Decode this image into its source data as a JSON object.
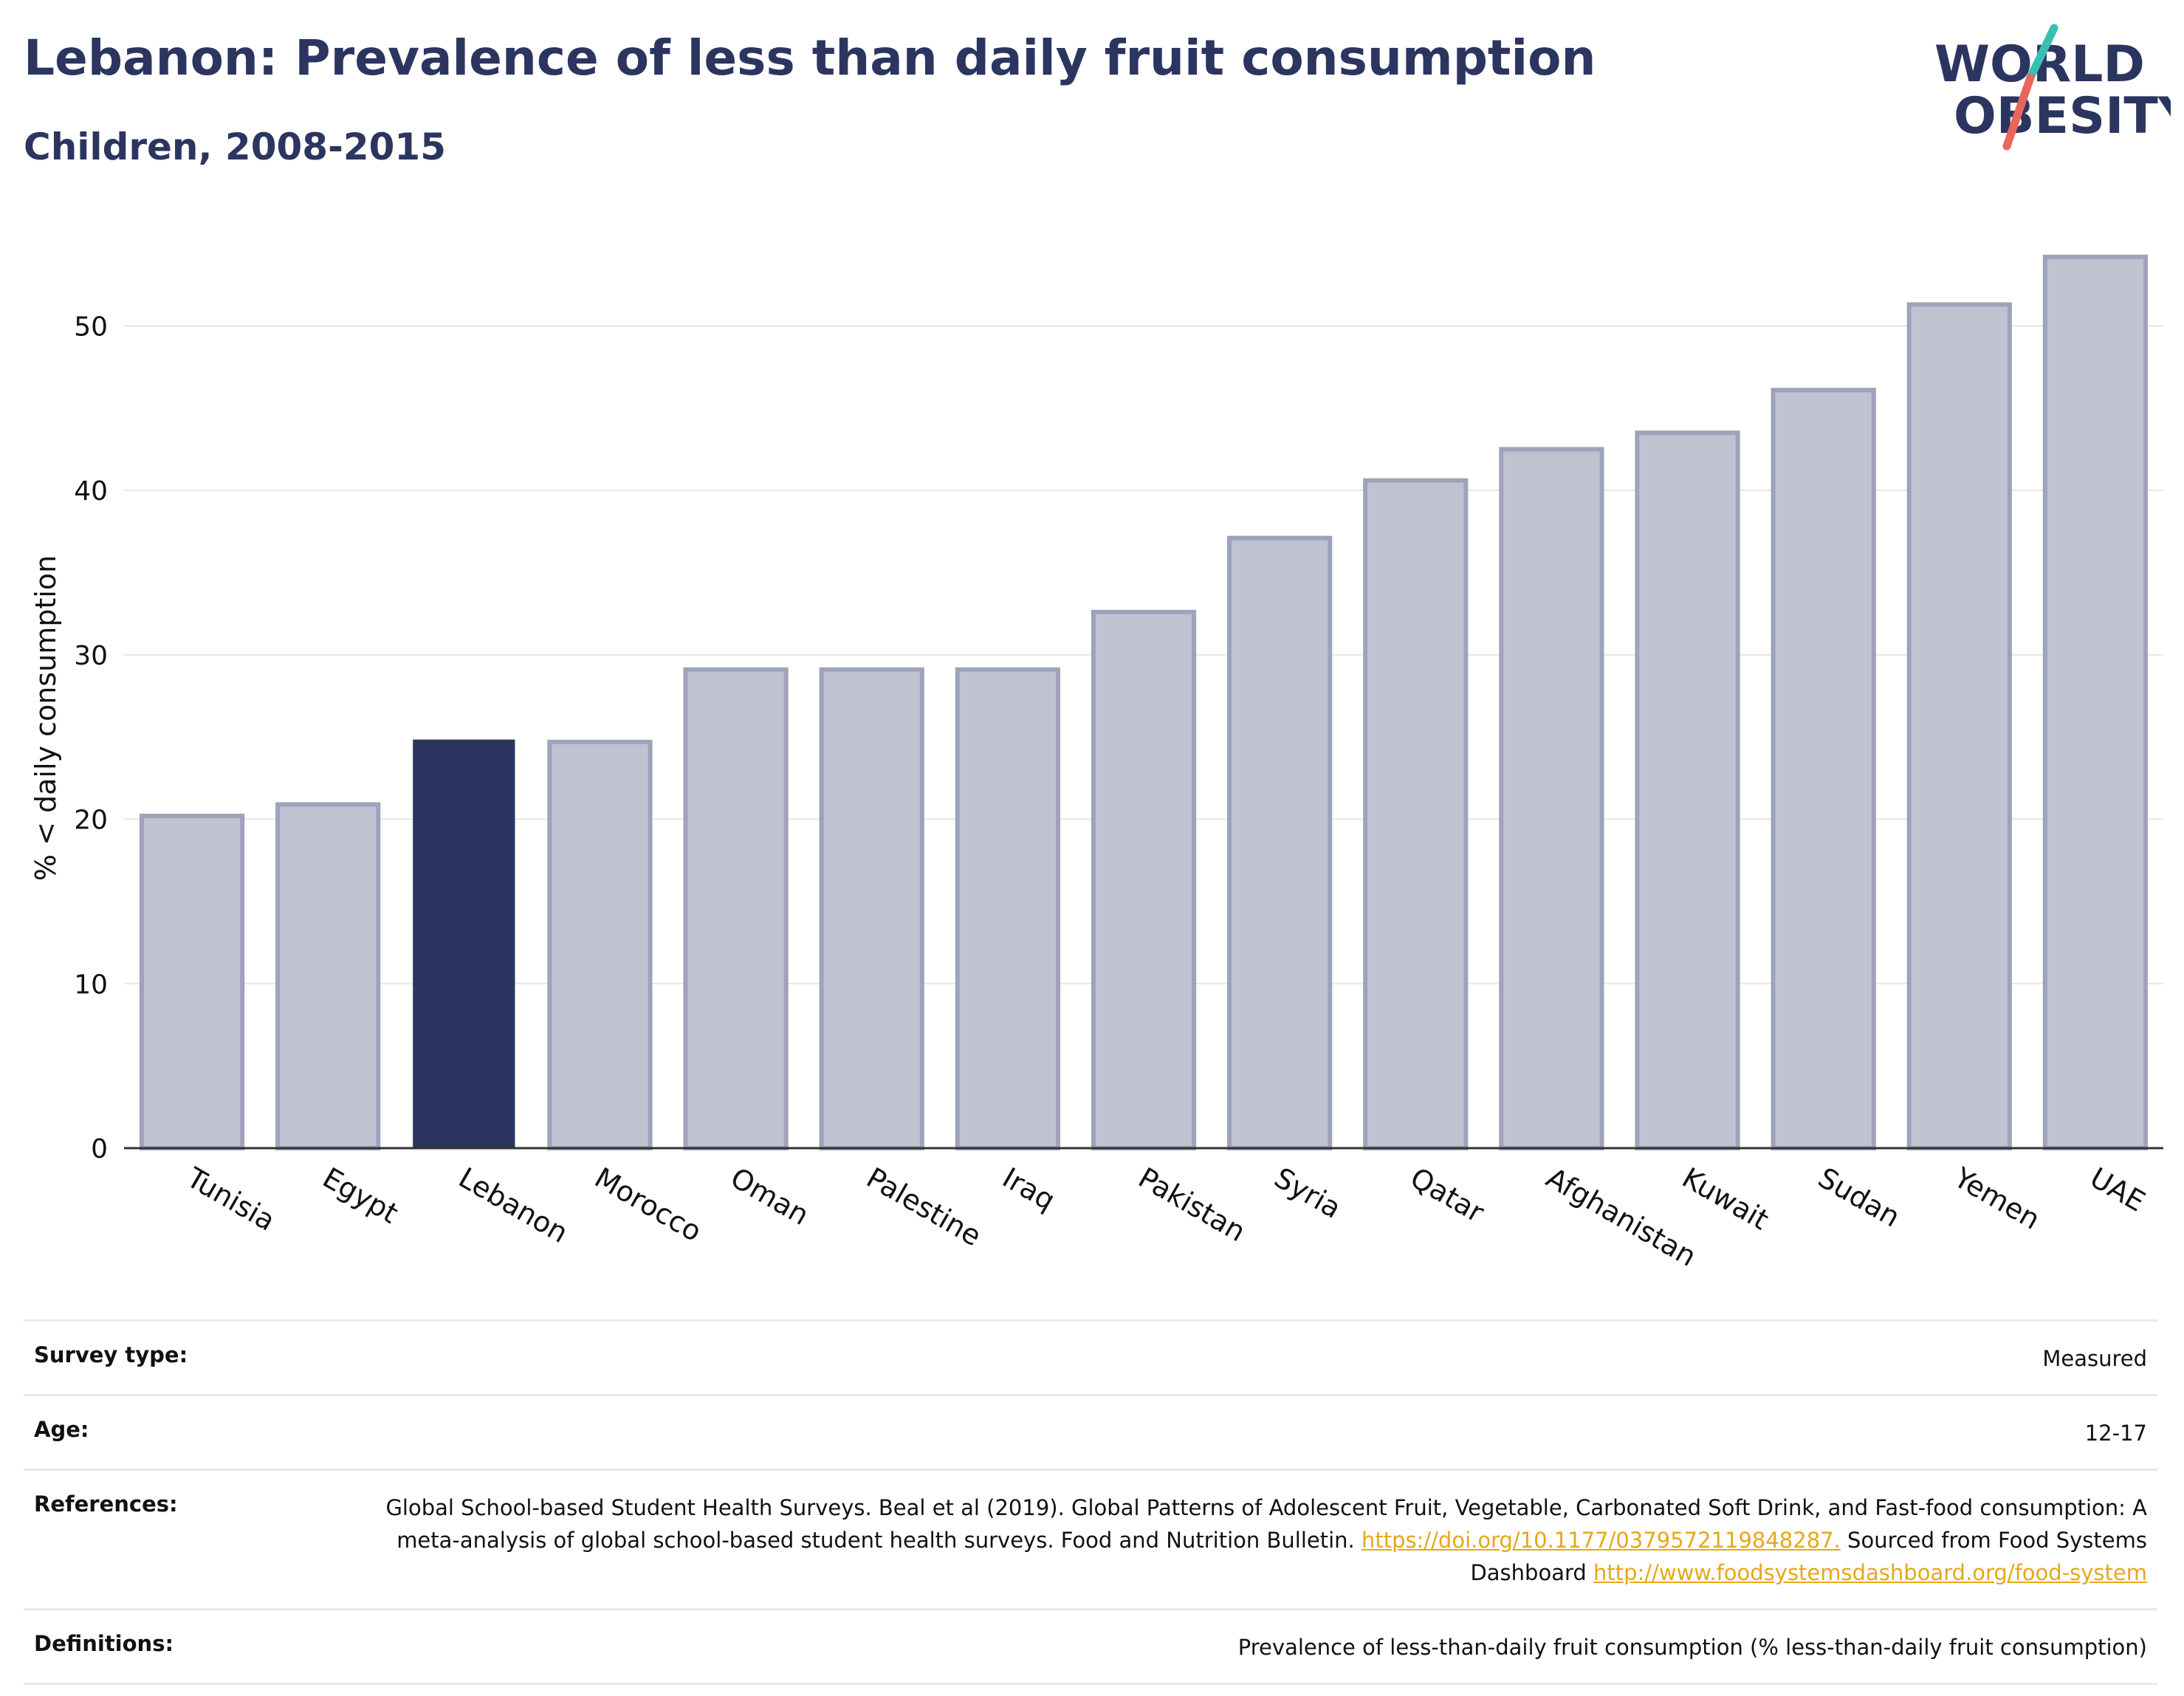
{
  "header": {
    "title": "Lebanon: Prevalence of less than daily fruit consumption",
    "subtitle": "Children, 2008-2015"
  },
  "logo": {
    "line1": "WORLD",
    "line2": "OBESITY",
    "accent_teal": "#3bbfb4",
    "accent_coral": "#e8675a"
  },
  "chart_data": {
    "type": "bar",
    "title": "Lebanon: Prevalence of less than daily fruit consumption",
    "subtitle": "Children, 2008-2015",
    "xlabel": "",
    "ylabel": "% < daily consumption",
    "ylim": [
      0,
      55
    ],
    "yticks": [
      0,
      10,
      20,
      30,
      40,
      50
    ],
    "grid": true,
    "categories": [
      "Tunisia",
      "Egypt",
      "Lebanon",
      "Morocco",
      "Oman",
      "Palestine",
      "Iraq",
      "Pakistan",
      "Syria",
      "Qatar",
      "Afghanistan",
      "Kuwait",
      "Sudan",
      "Yemen",
      "UAE"
    ],
    "values": [
      20.2,
      20.9,
      24.8,
      24.7,
      29.1,
      29.1,
      29.1,
      32.6,
      37.1,
      40.6,
      42.5,
      43.5,
      46.1,
      51.3,
      54.2
    ],
    "highlight": "Lebanon",
    "colors": {
      "highlight": "#2b3560",
      "other_fill": "#bfc2d0",
      "other_stroke": "#9ea3bb"
    }
  },
  "meta": {
    "survey_label": "Survey type:",
    "survey_value": "Measured",
    "age_label": "Age:",
    "age_value": "12-17",
    "references_label": "References:",
    "references_text1": "Global School-based Student Health Surveys. Beal et al (2019). Global Patterns of Adolescent Fruit, Vegetable, Carbonated Soft Drink, and Fast-food consumption: A meta-analysis of global school-based student health surveys. Food and Nutrition Bulletin.",
    "references_link1": "https://doi.org/10.1177/0379572119848287.",
    "references_text2": "Sourced from Food Systems Dashboard",
    "references_link2": "http://www.foodsystemsdashboard.org/food-system",
    "definitions_label": "Definitions:",
    "definitions_value": "Prevalence of less-than-daily fruit consumption (% less-than-daily fruit consumption)"
  }
}
